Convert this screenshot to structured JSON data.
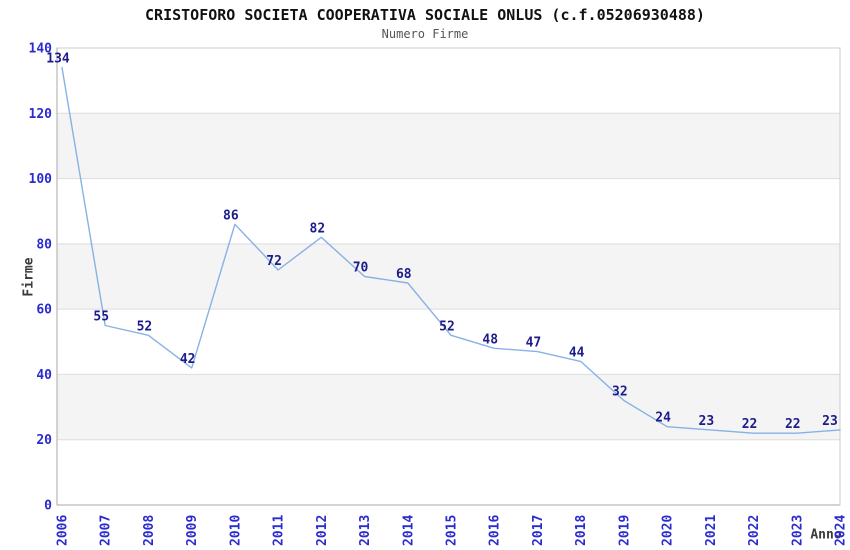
{
  "chart_data": {
    "type": "line",
    "title": "CRISTOFORO SOCIETA COOPERATIVA SOCIALE ONLUS (c.f.05206930488)",
    "subtitle": "Numero Firme",
    "xlabel": "Anno",
    "ylabel": "Firme",
    "x": [
      2006,
      2007,
      2008,
      2009,
      2010,
      2011,
      2012,
      2013,
      2014,
      2015,
      2016,
      2017,
      2018,
      2019,
      2020,
      2021,
      2022,
      2023,
      2024
    ],
    "values": [
      134,
      55,
      52,
      42,
      86,
      72,
      82,
      70,
      68,
      52,
      48,
      47,
      44,
      32,
      24,
      23,
      22,
      22,
      23
    ],
    "yticks": [
      0,
      20,
      40,
      60,
      80,
      100,
      120,
      140
    ],
    "ylim": [
      0,
      140
    ],
    "grid": "horizontal-alternating-bands",
    "legend": "none",
    "colors": {
      "line": "#87B2E6",
      "point_label": "#1C1C8A",
      "tick_label": "#2B2BD0",
      "axis_title": "#3A3A3A",
      "title": "#111111",
      "subtitle": "#555555",
      "band_fill": "#F4F4F4",
      "grid_line": "#DDDDDD",
      "plot_border": "#CCCCCC",
      "axis_line": "#AAAAAA"
    }
  }
}
